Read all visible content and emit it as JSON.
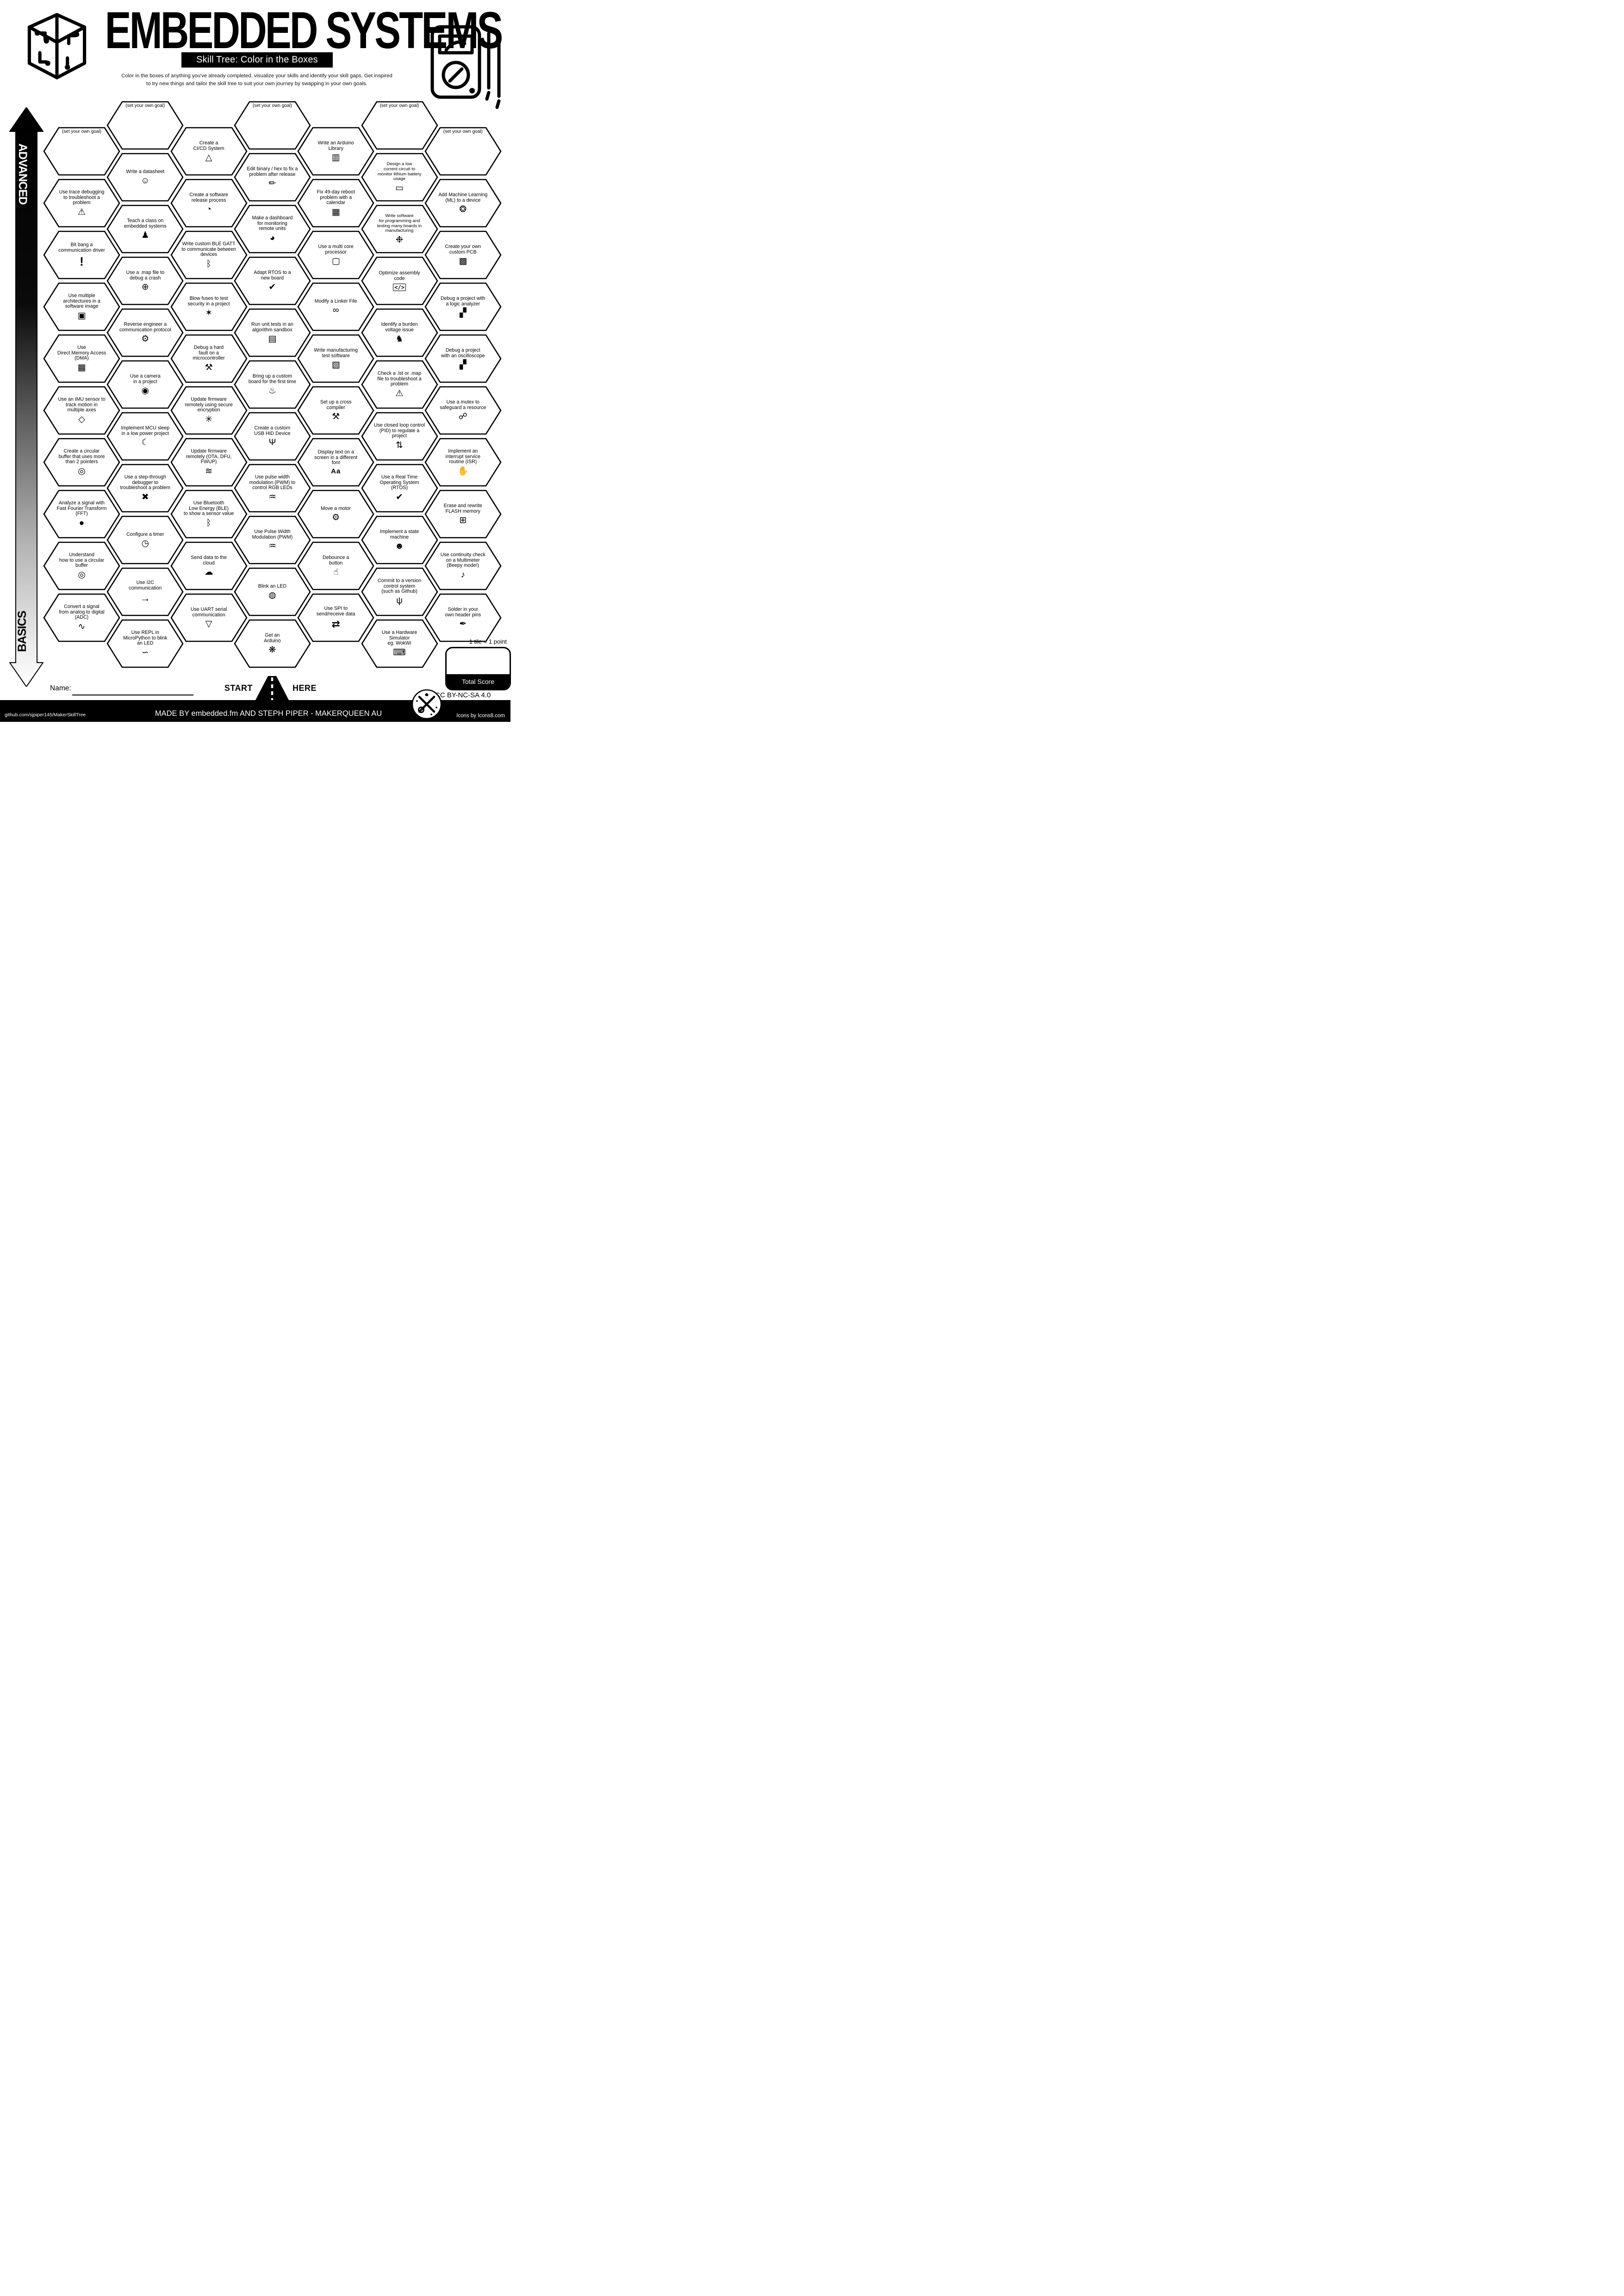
{
  "header": {
    "title": "EMBEDDED SYSTEMS",
    "subtitle": "Skill Tree: Color in the Boxes",
    "description": "Color in the boxes of anything you've already completed, visualize your skills and identify your skill gaps.  Get inspired\nto try new things and tailor the skill tree to suit your own journey by swapping in your own goals."
  },
  "axis": {
    "top_label": "ADVANCED",
    "bottom_label": "BASICS"
  },
  "start_marker": {
    "start": "START",
    "here": "HERE"
  },
  "name_field": {
    "label": "Name:",
    "value": ""
  },
  "score": {
    "tile_note": "1 tile = 1 point",
    "total_label": "Total Score",
    "value": ""
  },
  "license": {
    "cc": "CC BY-NC-SA 4.0"
  },
  "footer": {
    "left": "github.com/sjpiper145/MakerSkillTree",
    "center": "MADE BY embedded.fm AND STEPH PIPER  -  MAKERQUEEN AU",
    "right": "Icons by Icons8.com"
  },
  "icon_glyphs": {
    "monitor-warning": "⚠",
    "exclamation": "!",
    "multi-arch-cube": "▣",
    "dma-chip": "▦",
    "imu-axes": "◇",
    "circular-buffer": "◎",
    "fft-magnifier": "●",
    "adc-wave": "∿",
    "datasheet-doc": "☺",
    "teacher": "♟",
    "globe": "⊕",
    "reverse-gear": "⚙",
    "camera": "◉",
    "sleep-bed": "☾",
    "debugger-monitor": "✖",
    "stopwatch": "◷",
    "i2c-bus": "→",
    "python": "∽",
    "cicd-rocket": "△",
    "release-box": "◔",
    "bluetooth": "ᛒ",
    "fuse-blast": "✶",
    "hardfault-tools": "⚒",
    "secure-wifi-lock": "✳",
    "ota-wifi": "≋",
    "cloud": "☁",
    "uart-drop": "▽",
    "pencil": "✏",
    "dashboard-gauge": "◕",
    "monitor-check": "✔",
    "sandbox": "▤",
    "birthday-cake": "♨",
    "usb": "Ψ",
    "pwm-wave": "♒",
    "led": "◍",
    "party-popper": "❋",
    "books": "▥",
    "calendar": "▦",
    "cube": "▢",
    "chain-link": "∞",
    "test-box": "▧",
    "cross-tools": "⚒",
    "font-aa": "Aa",
    "motor": "⚙",
    "button-press": "☝",
    "spi-bus": "⇄",
    "battery": "▭",
    "octopus": "❉",
    "code": "</>",
    "donkey": "♞",
    "pid-loop": "⇅",
    "robot": "☻",
    "git-branch": "ψ",
    "laptop-sim": "⌨",
    "ml-head": "❂",
    "pcb": "▩",
    "multimeter": "▞",
    "handshake": "☍",
    "hand-stop": "✋",
    "flash-chip": "⊞",
    "multimeter-beep": "♪",
    "soldering-iron": "✒"
  },
  "board": {
    "columns": [
      {
        "items": [
          {
            "label": "(set your own goal)",
            "icon": null
          },
          {
            "label": "Use trace debugging\nto troubleshoot a\nproblem",
            "icon": "monitor-warning"
          },
          {
            "label": "Bit bang a\ncommunication driver",
            "icon": "exclamation"
          },
          {
            "label": "Use multiple\narchitectures in a\nsoftware image",
            "icon": "multi-arch-cube"
          },
          {
            "label": "Use\nDirect Memory Access\n(DMA)",
            "icon": "dma-chip"
          },
          {
            "label": "Use an IMU sensor to\ntrack motion in\nmultiple axes",
            "icon": "imu-axes"
          },
          {
            "label": "Create a circular\nbuffer that uses more\nthan 2 pointers",
            "icon": "circular-buffer"
          },
          {
            "label": "Analyze a signal with\nFast Fourier Transform\n(FFT)",
            "icon": "fft-magnifier"
          },
          {
            "label": "Understand\nhow to use a circular\nbuffer",
            "icon": "circular-buffer"
          },
          {
            "label": "Convert a signal\nfrom analog to digital\n(ADC)",
            "icon": "adc-wave"
          }
        ]
      },
      {
        "items": [
          {
            "label": "(set your own goal)",
            "icon": null
          },
          {
            "label": "Write a datasheet",
            "icon": "datasheet-doc"
          },
          {
            "label": "Teach a class on\nembedded systems",
            "icon": "teacher"
          },
          {
            "label": "Use a .map file to\ndebug a crash",
            "icon": "globe"
          },
          {
            "label": "Reverse engineer a\ncommunication protocol",
            "icon": "reverse-gear"
          },
          {
            "label": "Use a camera\nin a project",
            "icon": "camera"
          },
          {
            "label": "Implement MCU sleep\nin a low power project",
            "icon": "sleep-bed"
          },
          {
            "label": "Use a step-through\ndebugger to\ntroubleshoot a problem",
            "icon": "debugger-monitor"
          },
          {
            "label": "Configure a timer",
            "icon": "stopwatch"
          },
          {
            "label": "Use I2C\ncommunication",
            "icon": "i2c-bus"
          },
          {
            "label": "Use REPL in\nMicroPython to blink\nan LED",
            "icon": "python"
          }
        ]
      },
      {
        "items": [
          {
            "label": "Create a\nCI/CD System",
            "icon": "cicd-rocket"
          },
          {
            "label": "Create a software\nrelease process",
            "icon": "release-box"
          },
          {
            "label": "Write custom BLE GATT\nto communicate between\ndevices",
            "icon": "bluetooth"
          },
          {
            "label": "Blow fuses to test\nsecurity in a project",
            "icon": "fuse-blast"
          },
          {
            "label": "Debug a hard\nfault on a\nmicrocontroller",
            "icon": "hardfault-tools"
          },
          {
            "label": "Update firmware\nremotely using secure\nencryption",
            "icon": "secure-wifi-lock"
          },
          {
            "label": "Update firmware\nremotely (OTA, DFU,\nFWUP)",
            "icon": "ota-wifi"
          },
          {
            "label": "Use Bluetooth\nLow Energy (BLE)\nto show a sensor value",
            "icon": "bluetooth"
          },
          {
            "label": "Send data to the\ncloud",
            "icon": "cloud"
          },
          {
            "label": "Use UART serial\ncommunication",
            "icon": "uart-drop"
          }
        ]
      },
      {
        "items": [
          {
            "label": "(set your own goal)",
            "icon": null
          },
          {
            "label": "Edit binary / hex to fix a\nproblem after release",
            "icon": "pencil"
          },
          {
            "label": "Make a dashboard\nfor monitoring\nremote units",
            "icon": "dashboard-gauge"
          },
          {
            "label": "Adapt RTOS to a\nnew board",
            "icon": "monitor-check"
          },
          {
            "label": "Run unit tests in an\nalgorithm sandbox",
            "icon": "sandbox"
          },
          {
            "label": "Bring up a custom\nboard for the first time",
            "icon": "birthday-cake"
          },
          {
            "label": "Create a custom\nUSB HID Device",
            "icon": "usb"
          },
          {
            "label": "Use pulse width\nmodulation (PWM) to\ncontrol RGB LEDs",
            "icon": "pwm-wave"
          },
          {
            "label": "Use Pulse Width\nModulation (PWM)",
            "icon": "pwm-wave"
          },
          {
            "label": "Blink an LED",
            "icon": "led"
          },
          {
            "label": "Get an\nArduino",
            "icon": "party-popper"
          }
        ]
      },
      {
        "items": [
          {
            "label": "Write an Arduino\nLibrary",
            "icon": "books"
          },
          {
            "label": "Fix 49-day reboot\nproblem with a\ncalendar",
            "icon": "calendar"
          },
          {
            "label": "Use a multi core\nprocessor",
            "icon": "cube"
          },
          {
            "label": "Modify a Linker File",
            "icon": "chain-link"
          },
          {
            "label": "Write manufacturing\ntest software",
            "icon": "test-box"
          },
          {
            "label": "Set up a cross\ncompiler",
            "icon": "cross-tools"
          },
          {
            "label": "Display text on a\nscreen in a different\nfont",
            "icon": "font-aa"
          },
          {
            "label": "Move a motor",
            "icon": "motor"
          },
          {
            "label": "Debounce a\nbutton",
            "icon": "button-press"
          },
          {
            "label": "Use SPI to\nsend/receive data",
            "icon": "spi-bus"
          }
        ]
      },
      {
        "items": [
          {
            "label": "(set your own goal)",
            "icon": null
          },
          {
            "label": "Design a low\ncurrent circuit to\nmonitor lithium battery\nusage",
            "icon": "battery"
          },
          {
            "label": "Write software\nfor programming and\ntesting many boards in\nmanufacturing",
            "icon": "octopus"
          },
          {
            "label": "Optimize assembly\ncode",
            "icon": "code"
          },
          {
            "label": "Identify a burden\nvoltage issue",
            "icon": "donkey"
          },
          {
            "label": "Check a .lst or .map\nfile to troubleshoot a\nproblem",
            "icon": "monitor-warning"
          },
          {
            "label": "Use closed loop control\n(PID) to regulate a\nproject",
            "icon": "pid-loop"
          },
          {
            "label": "Use a Real Time\nOperating System\n(RTOS)",
            "icon": "monitor-check"
          },
          {
            "label": "Implement a state\nmachine",
            "icon": "robot"
          },
          {
            "label": "Commit to a version\ncontrol system\n(such as Github)",
            "icon": "git-branch"
          },
          {
            "label": "Use a Hardware\nSimulator\neg. WokWi",
            "icon": "laptop-sim"
          }
        ]
      },
      {
        "items": [
          {
            "label": "(set your own goal)",
            "icon": null
          },
          {
            "label": "Add Machine Learning\n(ML) to a device",
            "icon": "ml-head"
          },
          {
            "label": "Create your own\ncustom PCB",
            "icon": "pcb"
          },
          {
            "label": "Debug a project with\na logic analyzer",
            "icon": "multimeter"
          },
          {
            "label": "Debug a project\nwith an oscilloscope",
            "icon": "multimeter"
          },
          {
            "label": "Use a mutex to\nsafeguard a resource",
            "icon": "handshake"
          },
          {
            "label": "Implement an\ninterrupt service\nroutine (ISR)",
            "icon": "hand-stop"
          },
          {
            "label": "Erase and rewrite\nFLASH memory",
            "icon": "flash-chip"
          },
          {
            "label": "Use continuity check\non a Multimeter\n(Beepy mode!)",
            "icon": "multimeter-beep"
          },
          {
            "label": "Solder in your\nown header pins",
            "icon": "soldering-iron"
          }
        ]
      }
    ]
  }
}
